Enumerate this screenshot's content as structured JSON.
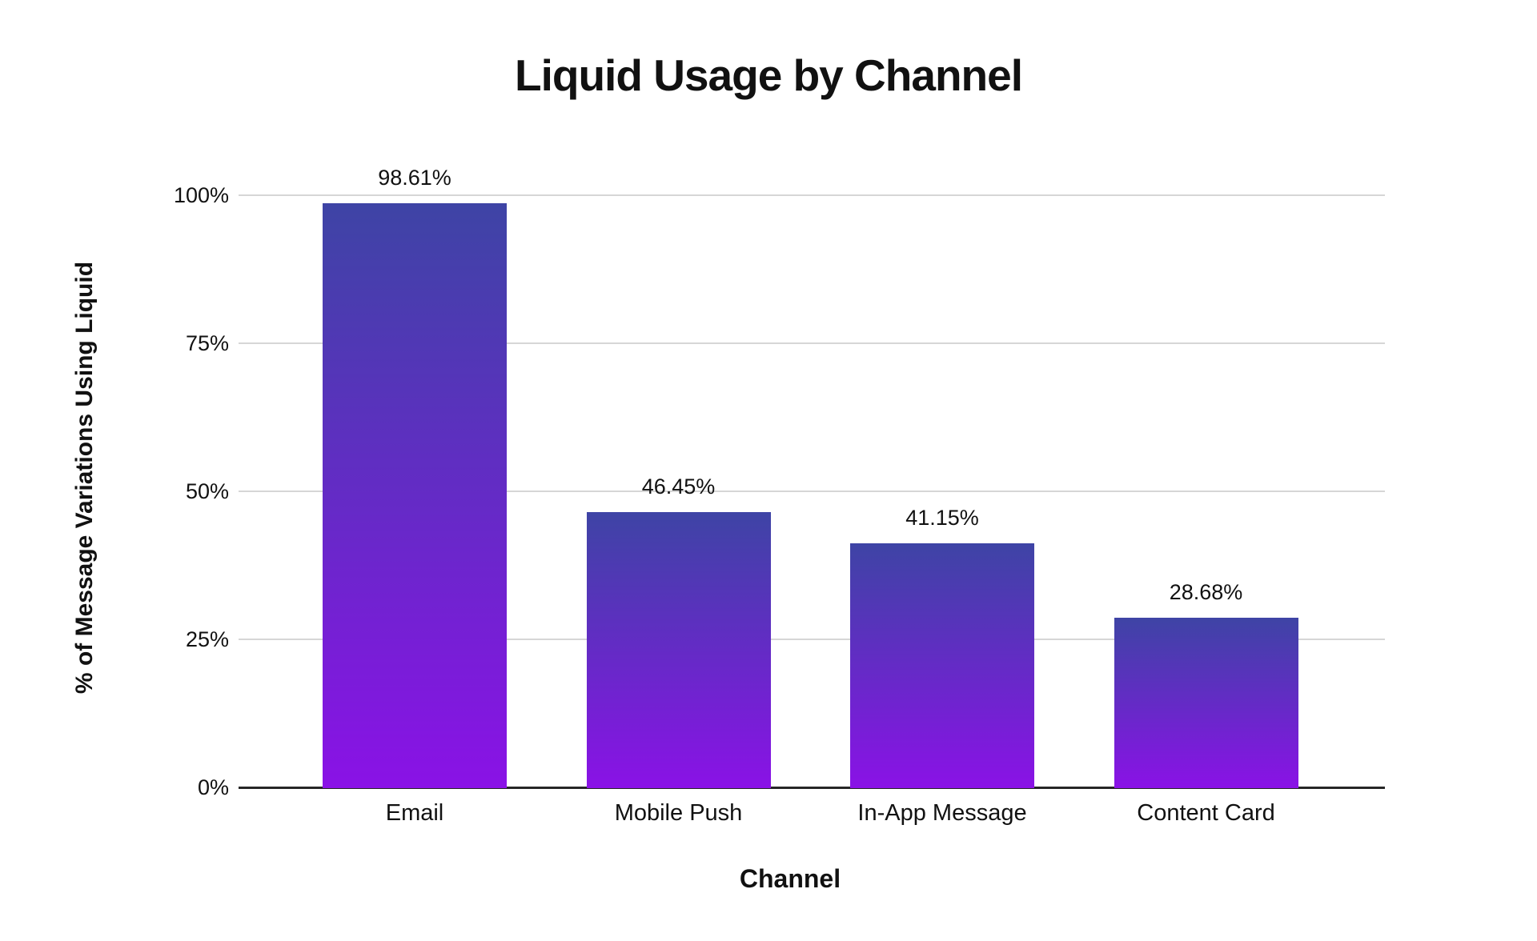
{
  "page": {
    "background_color": "#ffffff"
  },
  "chart_data": {
    "type": "bar",
    "title": "Liquid Usage by Channel",
    "xlabel": "Channel",
    "ylabel": "% of Message Variations Using Liquid",
    "categories": [
      "Email",
      "Mobile Push",
      "In-App Message",
      "Content Card"
    ],
    "values": [
      98.61,
      46.45,
      41.15,
      28.68
    ],
    "value_labels": [
      "98.61%",
      "46.45%",
      "41.15%",
      "28.68%"
    ],
    "yticks": [
      {
        "value": 0,
        "label": "0%"
      },
      {
        "value": 25,
        "label": "25%"
      },
      {
        "value": 50,
        "label": "50%"
      },
      {
        "value": 75,
        "label": "75%"
      },
      {
        "value": 100,
        "label": "100%"
      }
    ],
    "ylim": [
      0,
      100
    ],
    "grid": "horizontal",
    "legend": "none",
    "colors": {
      "bar_gradient_top": "#3E44A5",
      "bar_gradient_bottom": "#8A12E6",
      "gridline": "#d6d6d6",
      "axis_line": "#262626",
      "text": "#111111"
    }
  }
}
